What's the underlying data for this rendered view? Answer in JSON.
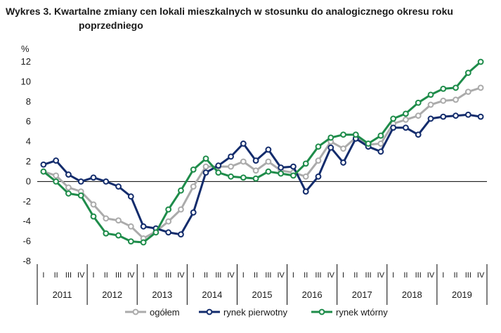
{
  "title_line1": "Wykres 3. Kwartalne zmiany cen lokali mieszkalnych w stosunku do analogicznego okresu roku",
  "title_line2": "poprzedniego",
  "chart_data": {
    "type": "line",
    "title": "Wykres 3. Kwartalne zmiany cen lokali mieszkalnych w stosunku do analogicznego okresu roku poprzedniego",
    "ylabel": "%",
    "ylim": [
      -8,
      12
    ],
    "yticks": [
      "12",
      "10",
      "8",
      "6",
      "4",
      "2",
      "0",
      "-2",
      "-4",
      "-6",
      "-8"
    ],
    "quarter_labels": [
      "I",
      "II",
      "III",
      "IV"
    ],
    "years": [
      "2011",
      "2012",
      "2013",
      "2014",
      "2015",
      "2016",
      "2017",
      "2018",
      "2019"
    ],
    "series": [
      {
        "name": "ogółem",
        "color": "#ababab",
        "values": [
          1.0,
          0.6,
          -0.6,
          -1.0,
          -2.3,
          -3.7,
          -3.9,
          -4.5,
          -5.7,
          -5.0,
          -4.0,
          -2.8,
          -0.5,
          1.5,
          1.5,
          1.5,
          2.0,
          1.1,
          2.0,
          1.1,
          0.9,
          0.5,
          2.1,
          4.0,
          3.3,
          4.4,
          3.7,
          3.8,
          5.8,
          6.2,
          6.6,
          7.7,
          8.1,
          8.2,
          9.0,
          9.4
        ]
      },
      {
        "name": "rynek pierwotny",
        "color": "#132c6c",
        "values": [
          1.7,
          2.1,
          0.7,
          0.0,
          0.4,
          0.0,
          -0.5,
          -1.5,
          -4.5,
          -4.7,
          -5.1,
          -5.3,
          -3.1,
          0.9,
          1.6,
          2.5,
          3.8,
          2.1,
          3.2,
          1.4,
          1.5,
          -1.0,
          0.5,
          3.4,
          1.9,
          4.3,
          3.5,
          3.0,
          5.4,
          5.4,
          4.7,
          6.3,
          6.5,
          6.6,
          6.7,
          6.5
        ]
      },
      {
        "name": "rynek wtórny",
        "color": "#1e8c4a",
        "values": [
          1.0,
          0.0,
          -1.2,
          -1.4,
          -3.5,
          -5.2,
          -5.4,
          -6.0,
          -6.1,
          -5.1,
          -2.8,
          -0.9,
          1.2,
          2.3,
          0.9,
          0.5,
          0.4,
          0.3,
          1.0,
          0.8,
          0.6,
          1.8,
          3.5,
          4.4,
          4.7,
          4.7,
          3.8,
          4.6,
          6.3,
          6.8,
          7.9,
          8.7,
          9.3,
          9.4,
          10.9,
          12.0
        ]
      }
    ]
  }
}
